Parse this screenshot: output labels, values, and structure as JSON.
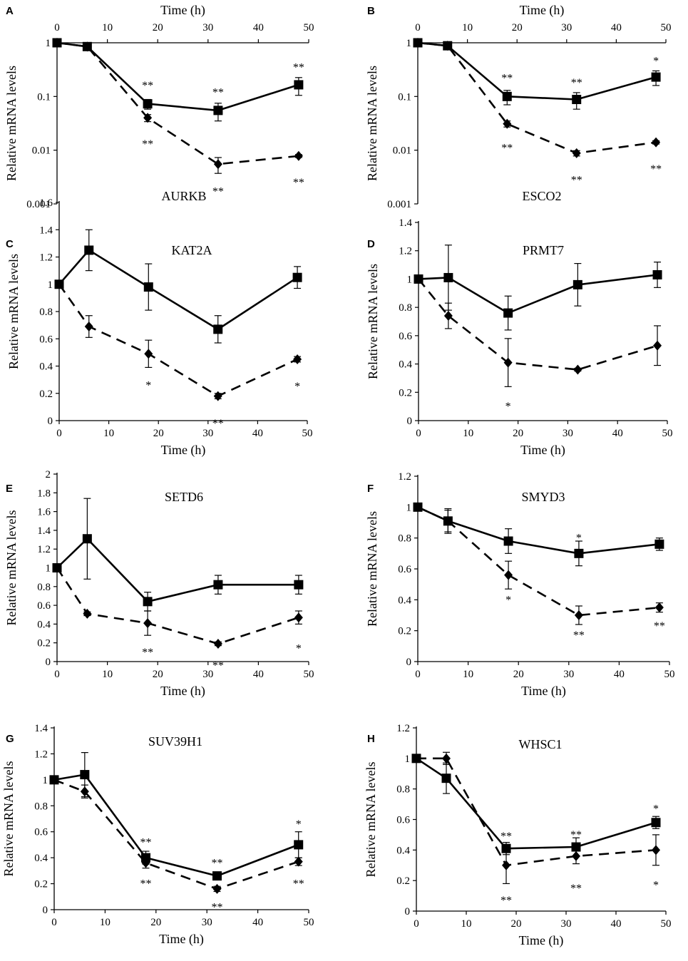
{
  "chart_data": [
    {
      "type": "line",
      "panel": "A",
      "gene": "AURKB",
      "scale": "log",
      "ylim": [
        0.001,
        1
      ],
      "yticks": [
        {
          "v": 0.001,
          "label": "0.001"
        },
        {
          "v": 0.01,
          "label": "0.01"
        },
        {
          "v": 0.1,
          "label": "0.1"
        },
        {
          "v": 1,
          "label": "1"
        }
      ],
      "xlim": [
        0,
        50
      ],
      "xticks": [
        "0",
        "10",
        "20",
        "30",
        "40",
        "50"
      ],
      "xlabel": "Time (h)",
      "xaxis_position": "top",
      "ylabel": "Relative mRNA levels",
      "series": [
        {
          "name": "solid",
          "marker": "square",
          "dash": false,
          "x": [
            0,
            6,
            18,
            32,
            48
          ],
          "y": [
            1,
            0.85,
            0.073,
            0.055,
            0.165
          ],
          "err": [
            0,
            0.05,
            0.015,
            0.02,
            0.06
          ]
        },
        {
          "name": "dashed",
          "marker": "diamond",
          "dash": true,
          "x": [
            0,
            6,
            18,
            32,
            48
          ],
          "y": [
            1,
            0.85,
            0.04,
            0.0055,
            0.0078
          ],
          "err": [
            0,
            0.05,
            0.006,
            0.0018,
            0.0005
          ]
        }
      ],
      "annotations": [
        {
          "x": 18,
          "y": 0.16,
          "text": "**"
        },
        {
          "x": 32,
          "y": 0.12,
          "text": "**"
        },
        {
          "x": 48,
          "y": 0.35,
          "text": "**"
        },
        {
          "x": 18,
          "y": 0.013,
          "text": "**"
        },
        {
          "x": 32,
          "y": 0.0017,
          "text": "**"
        },
        {
          "x": 48,
          "y": 0.0025,
          "text": "**"
        }
      ]
    },
    {
      "type": "line",
      "panel": "B",
      "gene": "ESCO2",
      "scale": "log",
      "ylim": [
        0.001,
        1
      ],
      "yticks": [
        {
          "v": 0.001,
          "label": "0.001"
        },
        {
          "v": 0.01,
          "label": "0.01"
        },
        {
          "v": 0.1,
          "label": "0.1"
        },
        {
          "v": 1,
          "label": "1"
        }
      ],
      "xlim": [
        0,
        50
      ],
      "xticks": [
        "0",
        "10",
        "20",
        "30",
        "40",
        "50"
      ],
      "xlabel": "Time (h)",
      "xaxis_position": "top",
      "ylabel": "Relative mRNA levels",
      "series": [
        {
          "name": "solid",
          "marker": "square",
          "dash": false,
          "x": [
            0,
            6,
            18,
            32,
            48
          ],
          "y": [
            1,
            0.88,
            0.1,
            0.088,
            0.23
          ],
          "err": [
            0,
            0.05,
            0.03,
            0.03,
            0.07
          ]
        },
        {
          "name": "dashed",
          "marker": "diamond",
          "dash": true,
          "x": [
            0,
            6,
            18,
            32,
            48
          ],
          "y": [
            1,
            0.88,
            0.031,
            0.0088,
            0.014
          ],
          "err": [
            0,
            0.05,
            0.004,
            0.001,
            0.001
          ]
        }
      ],
      "annotations": [
        {
          "x": 18,
          "y": 0.22,
          "text": "**"
        },
        {
          "x": 32,
          "y": 0.18,
          "text": "**"
        },
        {
          "x": 48,
          "y": 0.46,
          "text": "*"
        },
        {
          "x": 18,
          "y": 0.011,
          "text": "**"
        },
        {
          "x": 32,
          "y": 0.0028,
          "text": "**"
        },
        {
          "x": 48,
          "y": 0.0045,
          "text": "**"
        }
      ]
    },
    {
      "type": "line",
      "panel": "C",
      "gene": "KAT2A",
      "scale": "linear",
      "ylim": [
        0,
        1.6
      ],
      "yticks": [
        {
          "v": 0,
          "label": "0"
        },
        {
          "v": 0.2,
          "label": "0.2"
        },
        {
          "v": 0.4,
          "label": "0.4"
        },
        {
          "v": 0.6,
          "label": "0.6"
        },
        {
          "v": 0.8,
          "label": "0.8"
        },
        {
          "v": 1,
          "label": "1"
        },
        {
          "v": 1.2,
          "label": "1.2"
        },
        {
          "v": 1.4,
          "label": "1.4"
        },
        {
          "v": 1.6,
          "label": "1.6"
        }
      ],
      "xlim": [
        0,
        50
      ],
      "xticks": [
        "0",
        "10",
        "20",
        "30",
        "40",
        "50"
      ],
      "xlabel": "Time (h)",
      "xaxis_position": "bottom",
      "ylabel": "Relative mRNA levels",
      "series": [
        {
          "name": "solid",
          "marker": "square",
          "dash": false,
          "x": [
            0,
            6,
            18,
            32,
            48
          ],
          "y": [
            1,
            1.25,
            0.98,
            0.67,
            1.05
          ],
          "err": [
            0,
            0.15,
            0.17,
            0.1,
            0.08
          ]
        },
        {
          "name": "dashed",
          "marker": "diamond",
          "dash": true,
          "x": [
            0,
            6,
            18,
            32,
            48
          ],
          "y": [
            1,
            0.69,
            0.49,
            0.18,
            0.45
          ],
          "err": [
            0,
            0.08,
            0.1,
            0.02,
            0.02
          ]
        }
      ],
      "annotations": [
        {
          "x": 18,
          "y": 0.26,
          "text": "*"
        },
        {
          "x": 32,
          "y": -0.02,
          "text": "**"
        },
        {
          "x": 48,
          "y": 0.25,
          "text": "*"
        }
      ]
    },
    {
      "type": "line",
      "panel": "D",
      "gene": "PRMT7",
      "scale": "linear",
      "ylim": [
        0,
        1.4
      ],
      "yticks": [
        {
          "v": 0,
          "label": "0"
        },
        {
          "v": 0.2,
          "label": "0.2"
        },
        {
          "v": 0.4,
          "label": "0.4"
        },
        {
          "v": 0.6,
          "label": "0.6"
        },
        {
          "v": 0.8,
          "label": "0.8"
        },
        {
          "v": 1,
          "label": "1"
        },
        {
          "v": 1.2,
          "label": "1.2"
        },
        {
          "v": 1.4,
          "label": "1.4"
        }
      ],
      "xlim": [
        0,
        50
      ],
      "xticks": [
        "0",
        "10",
        "20",
        "30",
        "40",
        "50"
      ],
      "xlabel": "Time (h)",
      "xaxis_position": "bottom",
      "ylabel": "Relative mRNA levels",
      "series": [
        {
          "name": "solid",
          "marker": "square",
          "dash": false,
          "x": [
            0,
            6,
            18,
            32,
            48
          ],
          "y": [
            1,
            1.01,
            0.76,
            0.96,
            1.03
          ],
          "err": [
            0,
            0.23,
            0.12,
            0.15,
            0.09
          ]
        },
        {
          "name": "dashed",
          "marker": "diamond",
          "dash": true,
          "x": [
            0,
            6,
            18,
            32,
            48
          ],
          "y": [
            1,
            0.74,
            0.41,
            0.36,
            0.53
          ],
          "err": [
            0,
            0.09,
            0.17,
            0.01,
            0.14
          ]
        }
      ],
      "annotations": [
        {
          "x": 18,
          "y": 0.1,
          "text": "*"
        }
      ]
    },
    {
      "type": "line",
      "panel": "E",
      "gene": "SETD6",
      "scale": "linear",
      "ylim": [
        0,
        2
      ],
      "yticks": [
        {
          "v": 0,
          "label": "0"
        },
        {
          "v": 0.2,
          "label": "0.2"
        },
        {
          "v": 0.4,
          "label": "0.4"
        },
        {
          "v": 0.6,
          "label": "0.6"
        },
        {
          "v": 0.8,
          "label": "0.8"
        },
        {
          "v": 1,
          "label": "1"
        },
        {
          "v": 1.2,
          "label": "1.2"
        },
        {
          "v": 1.4,
          "label": "1.4"
        },
        {
          "v": 1.6,
          "label": "1.6"
        },
        {
          "v": 1.8,
          "label": "1.8"
        },
        {
          "v": 2,
          "label": "2"
        }
      ],
      "xlim": [
        0,
        50
      ],
      "xticks": [
        "0",
        "10",
        "20",
        "30",
        "40",
        "50"
      ],
      "xlabel": "Time (h)",
      "xaxis_position": "bottom",
      "ylabel": "Relative mRNA levels",
      "series": [
        {
          "name": "solid",
          "marker": "square",
          "dash": false,
          "x": [
            0,
            6,
            18,
            32,
            48
          ],
          "y": [
            1,
            1.31,
            0.64,
            0.82,
            0.82
          ],
          "err": [
            0,
            0.43,
            0.1,
            0.1,
            0.1
          ]
        },
        {
          "name": "dashed",
          "marker": "diamond",
          "dash": true,
          "x": [
            0,
            6,
            18,
            32,
            48
          ],
          "y": [
            1,
            0.51,
            0.41,
            0.19,
            0.47
          ],
          "err": [
            0,
            0.02,
            0.13,
            0.02,
            0.07
          ]
        }
      ],
      "annotations": [
        {
          "x": 18,
          "y": 0.1,
          "text": "**"
        },
        {
          "x": 32,
          "y": -0.04,
          "text": "**"
        },
        {
          "x": 48,
          "y": 0.14,
          "text": "*"
        }
      ]
    },
    {
      "type": "line",
      "panel": "F",
      "gene": "SMYD3",
      "scale": "linear",
      "ylim": [
        0,
        1.2
      ],
      "yticks": [
        {
          "v": 0,
          "label": "0"
        },
        {
          "v": 0.2,
          "label": "0.2"
        },
        {
          "v": 0.4,
          "label": "0.4"
        },
        {
          "v": 0.6,
          "label": "0.6"
        },
        {
          "v": 0.8,
          "label": "0.8"
        },
        {
          "v": 1,
          "label": "1"
        },
        {
          "v": 1.2,
          "label": "1.2"
        }
      ],
      "xlim": [
        0,
        50
      ],
      "xticks": [
        "0",
        "10",
        "20",
        "30",
        "40",
        "50"
      ],
      "xlabel": "Time (h)",
      "xaxis_position": "bottom",
      "ylabel": "Relative mRNA levels",
      "series": [
        {
          "name": "solid",
          "marker": "square",
          "dash": false,
          "x": [
            0,
            6,
            18,
            32,
            48
          ],
          "y": [
            1,
            0.91,
            0.78,
            0.7,
            0.76
          ],
          "err": [
            0,
            0.08,
            0.08,
            0.08,
            0.04
          ]
        },
        {
          "name": "dashed",
          "marker": "diamond",
          "dash": true,
          "x": [
            0,
            6,
            18,
            32,
            48
          ],
          "y": [
            1,
            0.91,
            0.56,
            0.3,
            0.35
          ],
          "err": [
            0,
            0.07,
            0.09,
            0.06,
            0.03
          ]
        }
      ],
      "annotations": [
        {
          "x": 32,
          "y": 0.8,
          "text": "*"
        },
        {
          "x": 18,
          "y": 0.4,
          "text": "*"
        },
        {
          "x": 32,
          "y": 0.17,
          "text": "**"
        },
        {
          "x": 48,
          "y": 0.23,
          "text": "**"
        }
      ]
    },
    {
      "type": "line",
      "panel": "G",
      "gene": "SUV39H1",
      "scale": "linear",
      "ylim": [
        0,
        1.4
      ],
      "yticks": [
        {
          "v": 0,
          "label": "0"
        },
        {
          "v": 0.2,
          "label": "0.2"
        },
        {
          "v": 0.4,
          "label": "0.4"
        },
        {
          "v": 0.6,
          "label": "0.6"
        },
        {
          "v": 0.8,
          "label": "0.8"
        },
        {
          "v": 1,
          "label": "1"
        },
        {
          "v": 1.2,
          "label": "1.2"
        },
        {
          "v": 1.4,
          "label": "1.4"
        }
      ],
      "xlim": [
        0,
        50
      ],
      "xticks": [
        "0",
        "10",
        "20",
        "30",
        "40",
        "50"
      ],
      "xlabel": "Time (h)",
      "xaxis_position": "bottom",
      "ylabel": "Relative mRNA levels",
      "series": [
        {
          "name": "solid",
          "marker": "square",
          "dash": false,
          "x": [
            0,
            6,
            18,
            32,
            48
          ],
          "y": [
            1,
            1.04,
            0.4,
            0.26,
            0.5
          ],
          "err": [
            0,
            0.17,
            0.05,
            0.03,
            0.1
          ]
        },
        {
          "name": "dashed",
          "marker": "diamond",
          "dash": true,
          "x": [
            0,
            6,
            18,
            32,
            48
          ],
          "y": [
            1,
            0.91,
            0.36,
            0.16,
            0.37
          ],
          "err": [
            0,
            0.05,
            0.04,
            0.02,
            0.03
          ]
        }
      ],
      "annotations": [
        {
          "x": 18,
          "y": 0.52,
          "text": "**"
        },
        {
          "x": 32,
          "y": 0.36,
          "text": "**"
        },
        {
          "x": 48,
          "y": 0.66,
          "text": "*"
        },
        {
          "x": 18,
          "y": 0.2,
          "text": "**"
        },
        {
          "x": 32,
          "y": 0.02,
          "text": "**"
        },
        {
          "x": 48,
          "y": 0.2,
          "text": "**"
        }
      ]
    },
    {
      "type": "line",
      "panel": "H",
      "gene": "WHSC1",
      "scale": "linear",
      "ylim": [
        0,
        1.2
      ],
      "yticks": [
        {
          "v": 0,
          "label": "0"
        },
        {
          "v": 0.2,
          "label": "0.2"
        },
        {
          "v": 0.4,
          "label": "0.4"
        },
        {
          "v": 0.6,
          "label": "0.6"
        },
        {
          "v": 0.8,
          "label": "0.8"
        },
        {
          "v": 1,
          "label": "1"
        },
        {
          "v": 1.2,
          "label": "1.2"
        }
      ],
      "xlim": [
        0,
        50
      ],
      "xticks": [
        "0",
        "10",
        "20",
        "30",
        "40",
        "50"
      ],
      "xlabel": "Time (h)",
      "xaxis_position": "bottom",
      "ylabel": "Relative mRNA levels",
      "series": [
        {
          "name": "solid",
          "marker": "square",
          "dash": false,
          "x": [
            0,
            6,
            18,
            32,
            48
          ],
          "y": [
            1,
            0.87,
            0.41,
            0.42,
            0.58
          ],
          "err": [
            0,
            0.1,
            0.04,
            0.06,
            0.04
          ]
        },
        {
          "name": "dashed",
          "marker": "diamond",
          "dash": true,
          "x": [
            0,
            6,
            18,
            32,
            48
          ],
          "y": [
            1,
            1,
            0.3,
            0.36,
            0.4
          ],
          "err": [
            0,
            0.04,
            0.12,
            0.05,
            0.1
          ]
        }
      ],
      "annotations": [
        {
          "x": 18,
          "y": 0.49,
          "text": "**"
        },
        {
          "x": 32,
          "y": 0.5,
          "text": "**"
        },
        {
          "x": 48,
          "y": 0.67,
          "text": "*"
        },
        {
          "x": 18,
          "y": 0.07,
          "text": "**"
        },
        {
          "x": 32,
          "y": 0.15,
          "text": "**"
        },
        {
          "x": 48,
          "y": 0.17,
          "text": "*"
        }
      ]
    }
  ]
}
